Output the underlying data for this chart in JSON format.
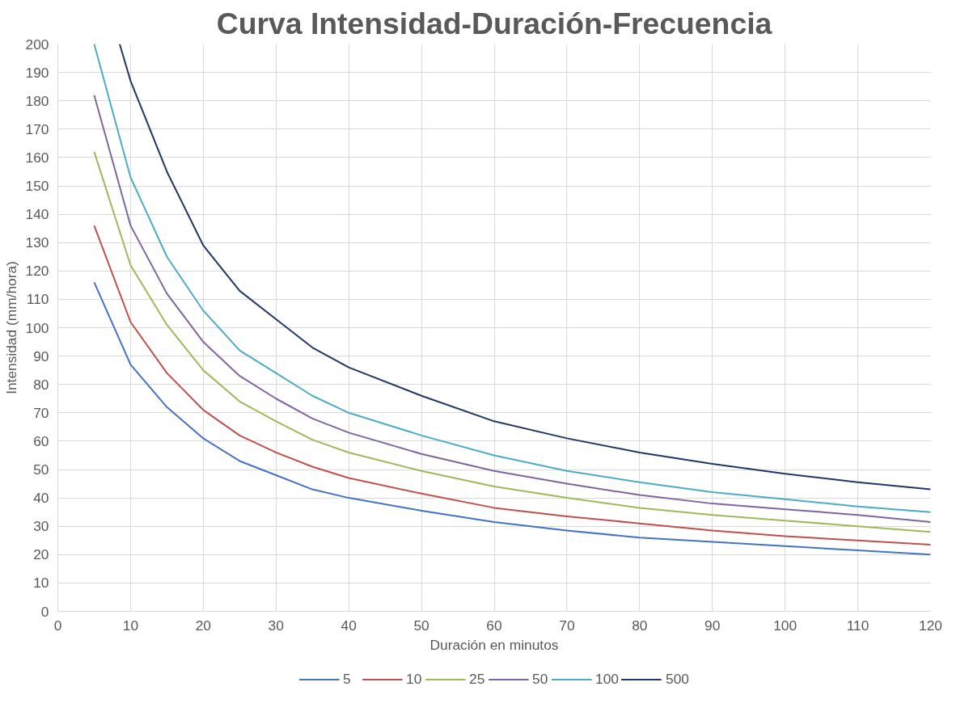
{
  "chart_data": {
    "type": "line",
    "title": "Curva Intensidad-Duración-Frecuencia",
    "xlabel": "Duración en minutos",
    "ylabel": "Intensidad (mm/hora)",
    "x": [
      5,
      10,
      15,
      20,
      25,
      30,
      35,
      40,
      50,
      60,
      70,
      80,
      90,
      100,
      110,
      120
    ],
    "xlim": [
      0,
      120
    ],
    "xticks": [
      0,
      10,
      20,
      30,
      40,
      50,
      60,
      70,
      80,
      90,
      100,
      110,
      120
    ],
    "ylim": [
      0,
      200
    ],
    "yticks": [
      0,
      10,
      20,
      30,
      40,
      50,
      60,
      70,
      80,
      90,
      100,
      110,
      120,
      130,
      140,
      150,
      160,
      170,
      180,
      190,
      200
    ],
    "grid": true,
    "legend": "bottom",
    "marker": "none",
    "line_style": "solid",
    "series": [
      {
        "name": "5",
        "color": "#4472c4",
        "values": [
          116,
          87,
          72,
          61,
          53,
          48,
          43,
          40,
          35.5,
          31.5,
          28.5,
          26,
          24.5,
          23,
          21.5,
          20
        ]
      },
      {
        "name": "10",
        "color": "#c0504d",
        "values": [
          136,
          102,
          84,
          71,
          62,
          56,
          51,
          47,
          41.5,
          36.5,
          33.5,
          31,
          28.5,
          26.5,
          25,
          23.5
        ]
      },
      {
        "name": "25",
        "color": "#9bbb59",
        "values": [
          162,
          122,
          101,
          85,
          74,
          67,
          60.5,
          56,
          49.5,
          44,
          40,
          36.5,
          34,
          32,
          30,
          28
        ]
      },
      {
        "name": "50",
        "color": "#8064a2",
        "values": [
          182,
          136,
          112,
          95,
          83,
          75,
          68,
          63,
          55.5,
          49.5,
          45,
          41,
          38,
          36,
          34,
          31.5
        ]
      },
      {
        "name": "100",
        "color": "#4bacc6",
        "values": [
          200,
          153,
          125,
          106,
          92,
          84,
          76,
          70,
          62,
          55,
          49.5,
          45.5,
          42,
          39.5,
          37,
          35
        ]
      },
      {
        "name": "500",
        "color": "#1f3864",
        "x": [
          8.5,
          10,
          15,
          20,
          25,
          30,
          35,
          40,
          50,
          60,
          70,
          80,
          90,
          100,
          110,
          120
        ],
        "values": [
          200,
          187,
          155,
          129,
          113,
          103,
          93,
          86,
          76,
          67,
          61,
          56,
          52,
          48.5,
          45.5,
          43
        ]
      }
    ]
  }
}
